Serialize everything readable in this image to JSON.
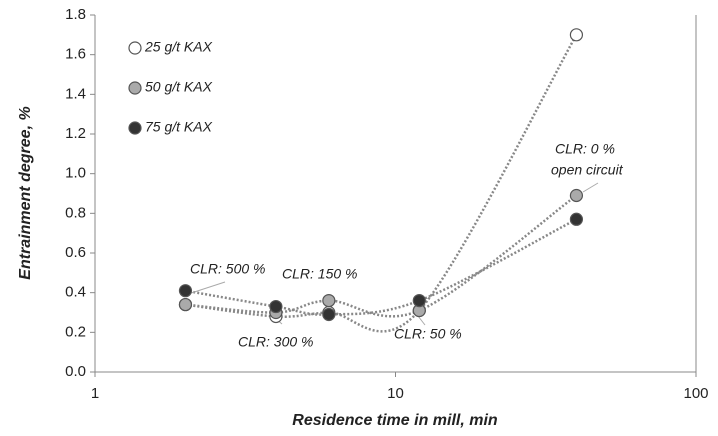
{
  "chart_data": {
    "type": "scatter",
    "x_label": "Residence time in mill, min",
    "y_label": "Entrainment degree, %",
    "x": [
      2,
      4,
      6,
      12,
      40
    ],
    "series": [
      {
        "name": "25 g/t KAX",
        "color": "#ffffff",
        "values": [
          0.34,
          0.28,
          0.3,
          0.31,
          1.7
        ]
      },
      {
        "name": "50 g/t KAX",
        "color": "#aaaaaa",
        "values": [
          0.34,
          0.3,
          0.36,
          0.31,
          0.89
        ]
      },
      {
        "name": "75 g/t KAX",
        "color": "#333333",
        "values": [
          0.41,
          0.33,
          0.29,
          0.36,
          0.77
        ]
      }
    ],
    "xlim": [
      1,
      100
    ],
    "xticks": [
      1,
      10,
      100
    ],
    "xscale": "log",
    "ylim": [
      0,
      1.8
    ],
    "yticks": [
      {
        "value": 0,
        "label": "0.0"
      },
      {
        "value": 0.2,
        "label": "0.2"
      },
      {
        "value": 0.4,
        "label": "0.4"
      },
      {
        "value": 0.6,
        "label": "0.6"
      },
      {
        "value": 0.8,
        "label": "0.8"
      },
      {
        "value": 1.0,
        "label": "1.0"
      },
      {
        "value": 1.2,
        "label": "1.2"
      },
      {
        "value": 1.4,
        "label": "1.4"
      },
      {
        "value": 1.6,
        "label": "1.6"
      },
      {
        "value": 1.8,
        "label": "1.8"
      }
    ],
    "legend": "upper-left",
    "annotations": [
      "CLR: 500 %",
      "CLR: 150 %",
      "CLR: 300 %",
      "CLR: 50 %",
      "CLR: 0 %",
      "open circuit"
    ]
  }
}
